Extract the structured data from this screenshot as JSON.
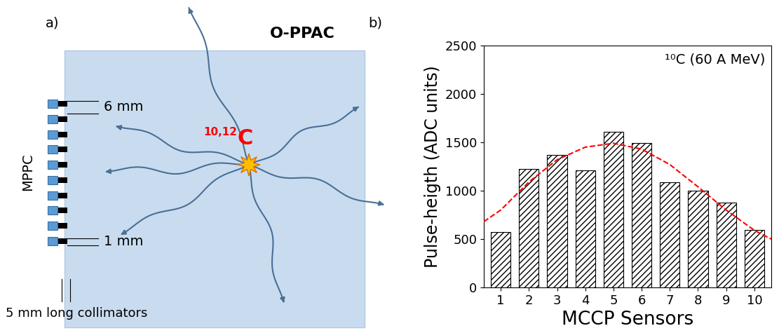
{
  "panels": [
    "a)",
    "b)"
  ],
  "diagram": {
    "title": "O-PPAC",
    "sensor_label": "MPPC",
    "isotope": {
      "superscript": "10,12",
      "symbol": "C"
    },
    "dimensions": [
      "6 mm",
      "1 mm"
    ],
    "collimator_note": "5 mm long collimators"
  },
  "chart_data": {
    "type": "bar",
    "xlabel": "MCCP Sensors",
    "ylabel": "Pulse-heigth (ADC units)",
    "annotations": [
      {
        "text": "¹⁰C (60 A MeV)"
      }
    ],
    "xlim": [
      0.4,
      10.6
    ],
    "xticks": [
      1,
      2,
      3,
      4,
      5,
      6,
      7,
      8,
      9,
      10
    ],
    "ylim": [
      0,
      2500
    ],
    "yticks": [
      0,
      500,
      1000,
      1500,
      2000,
      2500
    ],
    "series": [
      {
        "type": "bar",
        "color": "#ffffff",
        "x": [
          1,
          2,
          3,
          4,
          5,
          6,
          7,
          8,
          9,
          10
        ],
        "values": [
          575,
          1225,
          1370,
          1210,
          1610,
          1495,
          1090,
          1000,
          875,
          595
        ]
      },
      {
        "type": "line",
        "color": "#ff0000",
        "line_style": "dashed",
        "x": [
          0.4,
          1,
          2,
          3,
          4,
          5,
          6,
          7,
          8,
          9,
          10,
          10.6
        ],
        "values": [
          680,
          800,
          1090,
          1320,
          1450,
          1490,
          1430,
          1270,
          1040,
          800,
          590,
          500
        ]
      }
    ]
  }
}
